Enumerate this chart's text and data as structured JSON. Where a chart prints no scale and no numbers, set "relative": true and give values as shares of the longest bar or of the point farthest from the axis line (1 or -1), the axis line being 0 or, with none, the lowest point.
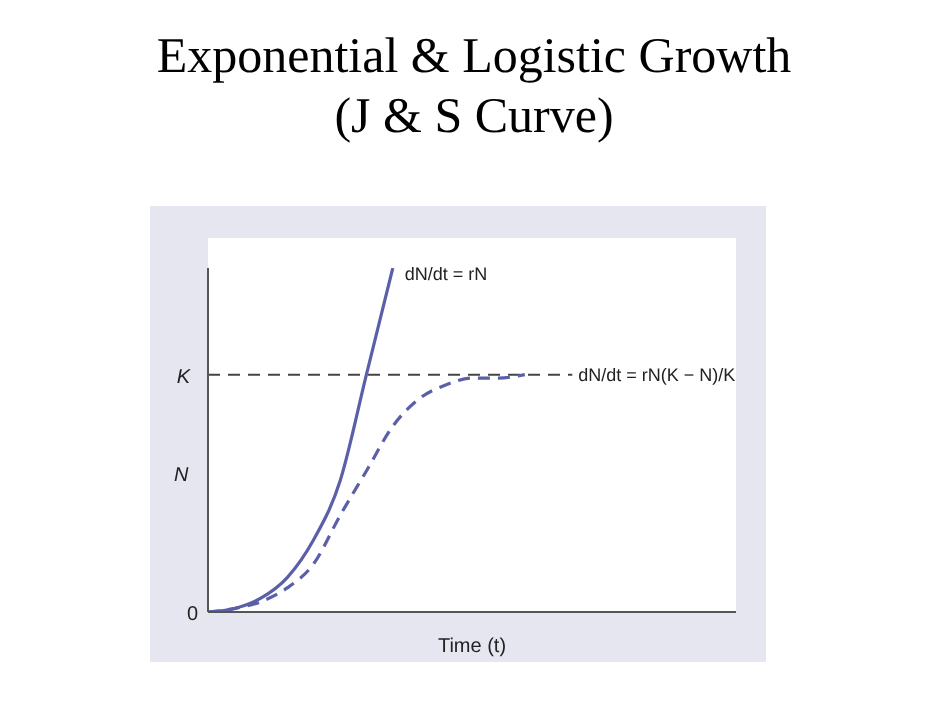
{
  "chart_data": {
    "type": "line",
    "title": "Exponential & Logistic Growth",
    "subtitle": "(J & S Curve)",
    "xlabel": "Time (t)",
    "ylabel": "N",
    "relative": true,
    "categories": [
      null,
      null,
      null,
      null,
      null,
      null,
      null,
      null,
      null,
      null,
      null,
      null,
      null,
      null,
      null,
      null,
      null,
      null,
      null,
      null,
      null
    ],
    "series": [
      {
        "color": "#5b5fa8",
        "line_style": "solid",
        "values": [
          0,
          0.01,
          0.04,
          0.1,
          0.21,
          0.38,
          0.69,
          1,
          null,
          null,
          null,
          null,
          null,
          null,
          null,
          null,
          null,
          null,
          null,
          null,
          null
        ]
      },
      {
        "color": "#5b5fa8",
        "line_style": "dashed",
        "values": [
          0,
          0.01,
          0.03,
          0.07,
          0.14,
          0.28,
          0.41,
          0.54,
          0.62,
          0.66,
          0.68,
          0.68,
          0.69,
          null,
          null,
          null,
          null,
          null,
          null,
          null,
          null
        ]
      }
    ],
    "annotations": [
      "dN/dt = rN",
      "dN/dt = rN(K − N)/K",
      "0"
    ],
    "ref_lines": [
      {
        "axis": "y",
        "value": 0.69,
        "label": "K",
        "color": "#444444",
        "line_style": "dashed"
      }
    ],
    "marker": "none"
  }
}
